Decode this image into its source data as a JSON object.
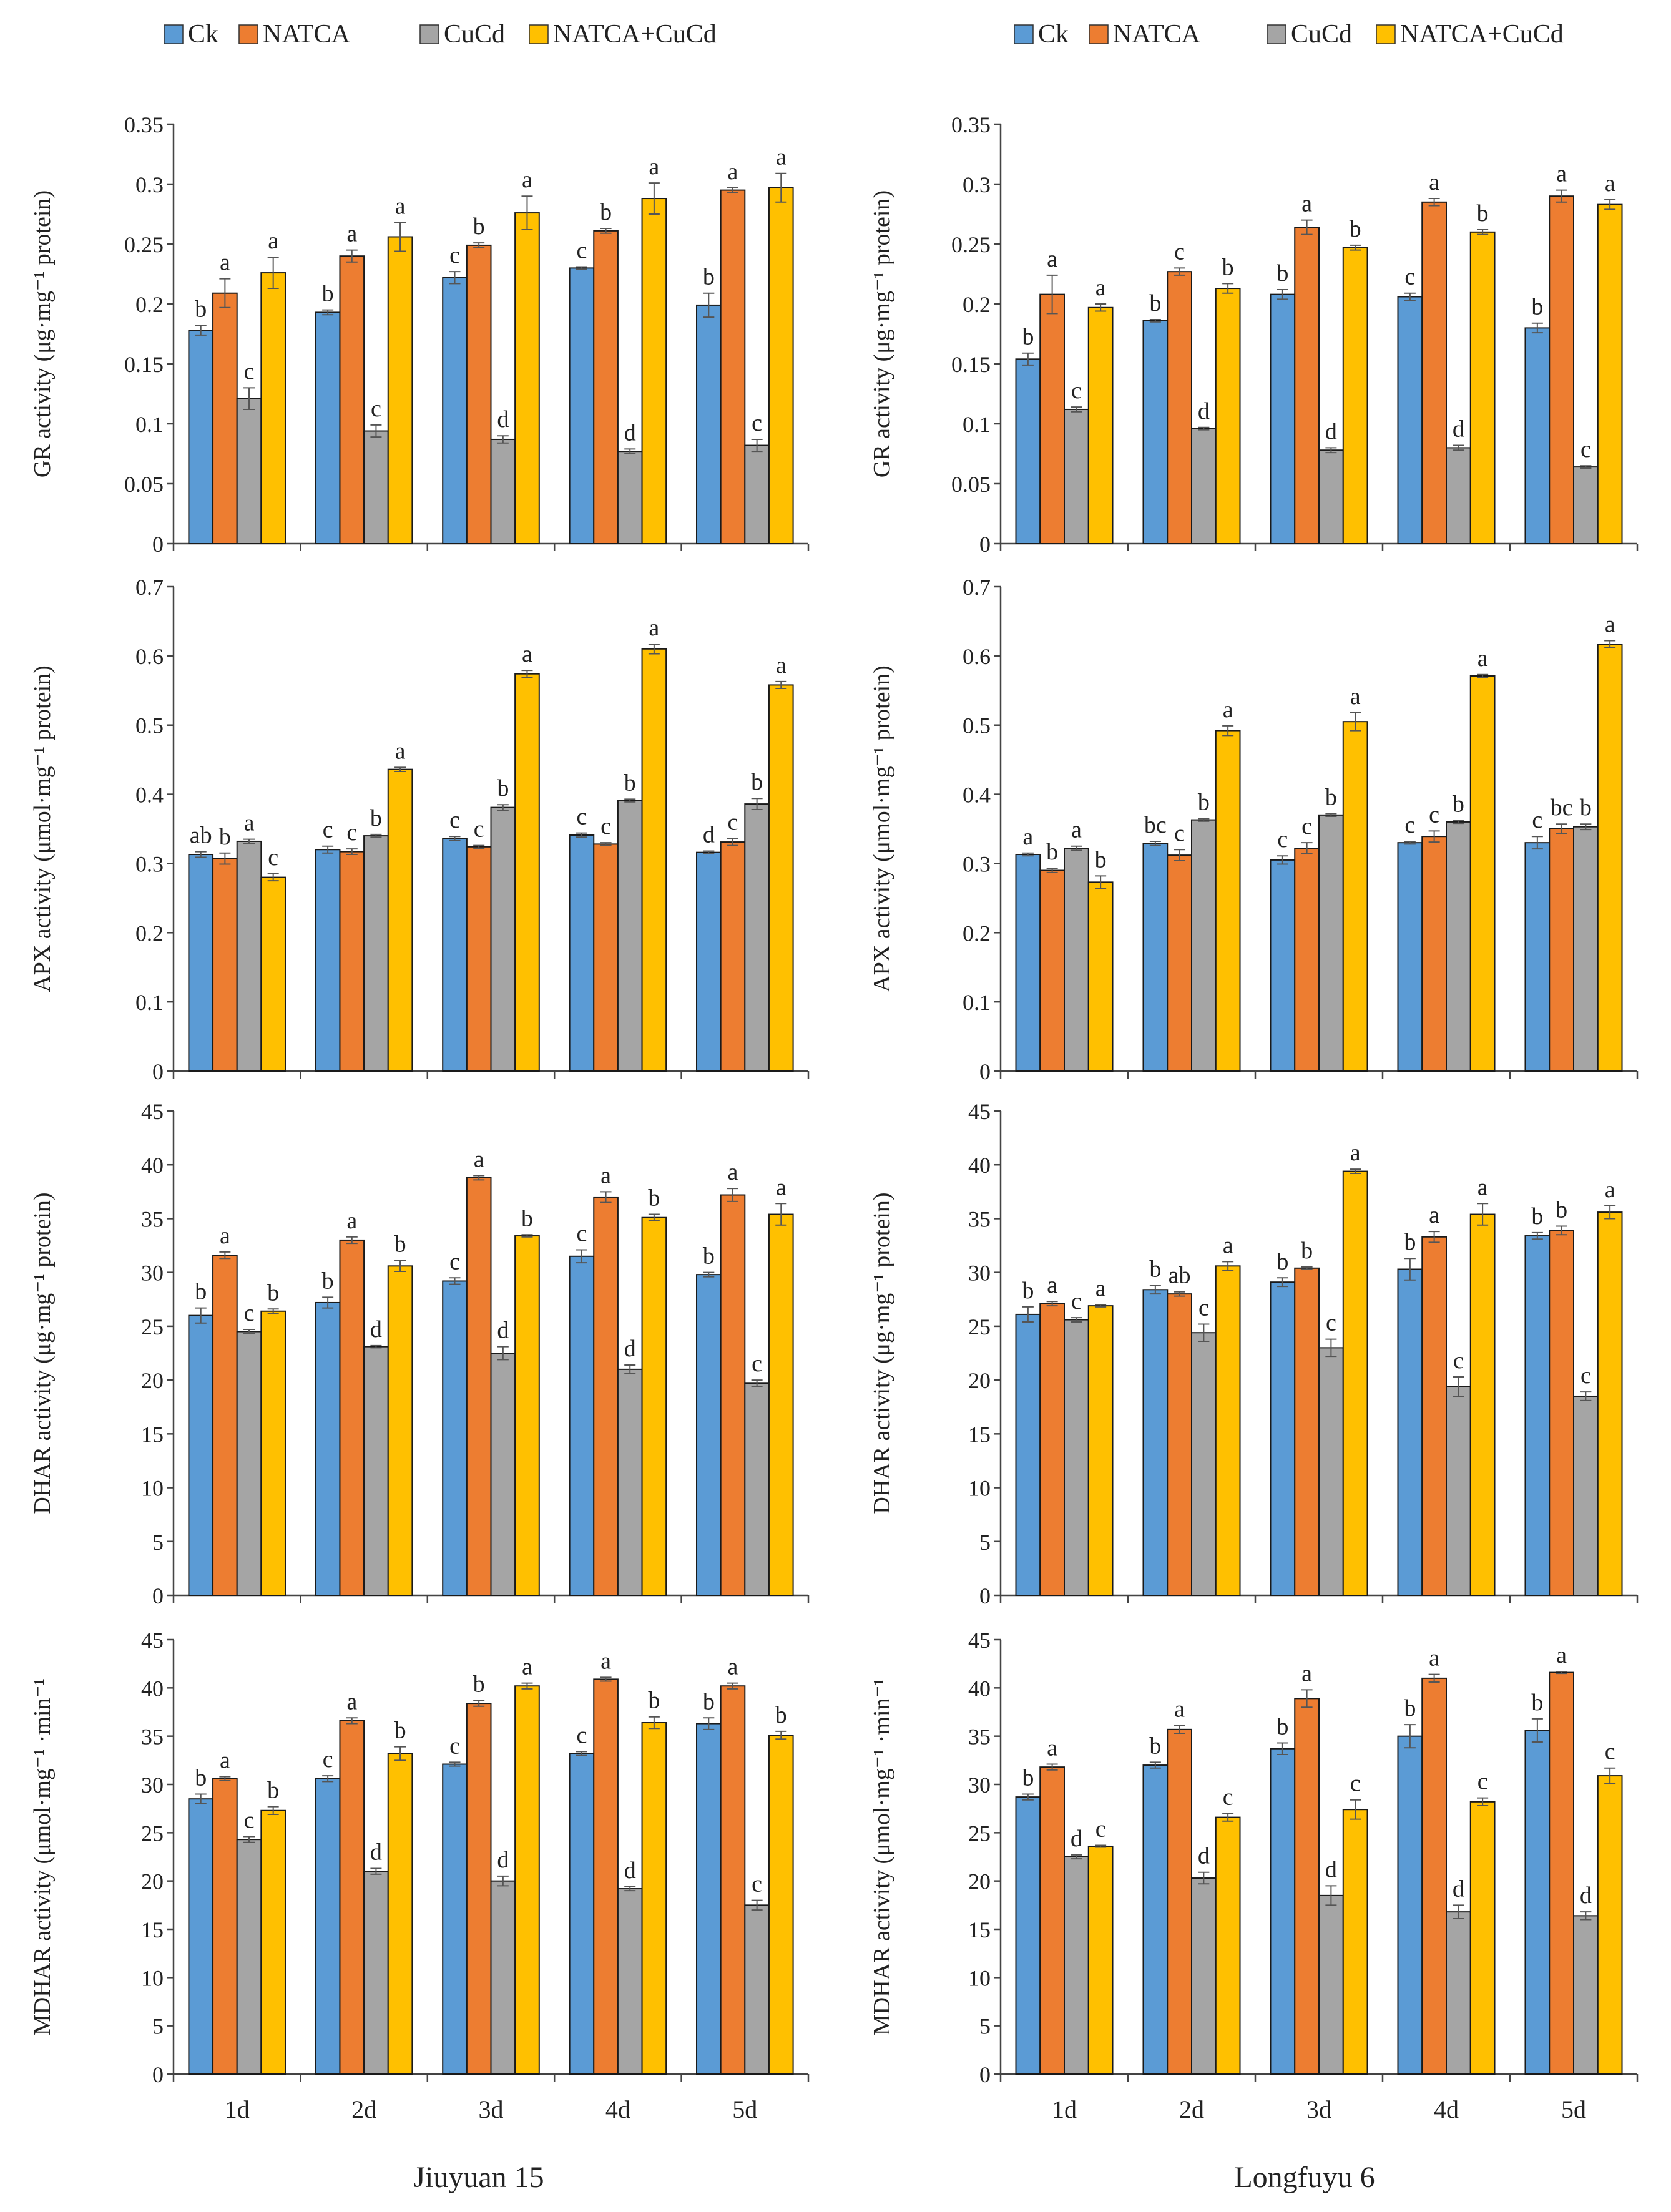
{
  "legend": {
    "left": [
      "Ck",
      "NATCA",
      "CuCd",
      "NATCA+CuCd"
    ],
    "right": [
      "Ck",
      "NATCA",
      "CuCd",
      "NATCA+CuCd"
    ]
  },
  "colors": {
    "Ck": "#5b9bd5",
    "NATCA": "#ed7d31",
    "CuCd": "#a5a5a5",
    "NATCA+CuCd": "#ffc000"
  },
  "columns": [
    {
      "title": "Jiuyuan 15"
    },
    {
      "title": "Longfuyu 6"
    }
  ],
  "chart_data": [
    {
      "type": "bar",
      "panel": "Jiuyuan 15 - GR",
      "categories": [
        "1d",
        "2d",
        "3d",
        "4d",
        "5d"
      ],
      "ylabel": "GR activity (μg·mg⁻¹ protein)",
      "ylim": [
        0,
        0.35
      ],
      "yticks": [
        "0",
        "0.05",
        "0.1",
        "0.15",
        "0.2",
        "0.25",
        "0.3",
        "0.35"
      ],
      "series": [
        {
          "name": "Ck",
          "values": [
            0.178,
            0.193,
            0.222,
            0.23,
            0.199
          ],
          "errors": [
            0.004,
            0.002,
            0.005,
            0.001,
            0.01
          ],
          "labels": [
            "b",
            "b",
            "c",
            "c",
            "b"
          ]
        },
        {
          "name": "NATCA",
          "values": [
            0.209,
            0.24,
            0.249,
            0.261,
            0.295
          ],
          "errors": [
            0.012,
            0.005,
            0.002,
            0.002,
            0.002
          ],
          "labels": [
            "a",
            "a",
            "b",
            "b",
            "a"
          ]
        },
        {
          "name": "CuCd",
          "values": [
            0.121,
            0.094,
            0.087,
            0.077,
            0.082
          ],
          "errors": [
            0.009,
            0.005,
            0.003,
            0.002,
            0.005
          ],
          "labels": [
            "c",
            "c",
            "d",
            "d",
            "c"
          ]
        },
        {
          "name": "NATCA+CuCd",
          "values": [
            0.226,
            0.256,
            0.276,
            0.288,
            0.297
          ],
          "errors": [
            0.013,
            0.012,
            0.014,
            0.013,
            0.012
          ],
          "labels": [
            "a",
            "a",
            "a",
            "a",
            "a"
          ]
        }
      ]
    },
    {
      "type": "bar",
      "panel": "Longfuyu 6 - GR",
      "categories": [
        "1d",
        "2d",
        "3d",
        "4d",
        "5d"
      ],
      "ylabel": "GR activity (μg·mg⁻¹ protein)",
      "ylim": [
        0,
        0.35
      ],
      "yticks": [
        "0",
        "0.05",
        "0.1",
        "0.15",
        "0.2",
        "0.25",
        "0.3",
        "0.35"
      ],
      "series": [
        {
          "name": "Ck",
          "values": [
            0.154,
            0.186,
            0.208,
            0.206,
            0.18
          ],
          "errors": [
            0.005,
            0.001,
            0.004,
            0.003,
            0.004
          ],
          "labels": [
            "b",
            "b",
            "b",
            "c",
            "b"
          ]
        },
        {
          "name": "NATCA",
          "values": [
            0.208,
            0.227,
            0.264,
            0.285,
            0.29
          ],
          "errors": [
            0.016,
            0.003,
            0.006,
            0.003,
            0.005
          ],
          "labels": [
            "a",
            "c",
            "a",
            "a",
            "a"
          ]
        },
        {
          "name": "CuCd",
          "values": [
            0.112,
            0.096,
            0.078,
            0.08,
            0.064
          ],
          "errors": [
            0.002,
            0.001,
            0.002,
            0.002,
            0.001
          ],
          "labels": [
            "c",
            "d",
            "d",
            "d",
            "c"
          ]
        },
        {
          "name": "NATCA+CuCd",
          "values": [
            0.197,
            0.213,
            0.247,
            0.26,
            0.283
          ],
          "errors": [
            0.003,
            0.004,
            0.002,
            0.002,
            0.004
          ],
          "labels": [
            "a",
            "b",
            "b",
            "b",
            "a"
          ]
        }
      ]
    },
    {
      "type": "bar",
      "panel": "Jiuyuan 15 - APX",
      "categories": [
        "1d",
        "2d",
        "3d",
        "4d",
        "5d"
      ],
      "ylabel": "APX activity (μmol·mg⁻¹ protein)",
      "ylim": [
        0,
        0.7
      ],
      "yticks": [
        "0",
        "0.1",
        "0.2",
        "0.3",
        "0.4",
        "0.5",
        "0.6",
        "0.7"
      ],
      "series": [
        {
          "name": "Ck",
          "values": [
            0.313,
            0.32,
            0.336,
            0.341,
            0.316
          ],
          "errors": [
            0.004,
            0.005,
            0.003,
            0.003,
            0.002
          ],
          "labels": [
            "ab",
            "c",
            "c",
            "c",
            "d"
          ]
        },
        {
          "name": "NATCA",
          "values": [
            0.307,
            0.317,
            0.324,
            0.328,
            0.331
          ],
          "errors": [
            0.008,
            0.004,
            0.002,
            0.002,
            0.005
          ],
          "labels": [
            "b",
            "c",
            "c",
            "c",
            "c"
          ]
        },
        {
          "name": "CuCd",
          "values": [
            0.332,
            0.34,
            0.381,
            0.391,
            0.386
          ],
          "errors": [
            0.003,
            0.002,
            0.004,
            0.002,
            0.008
          ],
          "labels": [
            "a",
            "b",
            "b",
            "b",
            "b"
          ]
        },
        {
          "name": "NATCA+CuCd",
          "values": [
            0.28,
            0.436,
            0.574,
            0.61,
            0.558
          ],
          "errors": [
            0.005,
            0.003,
            0.005,
            0.007,
            0.005
          ],
          "labels": [
            "c",
            "a",
            "a",
            "a",
            "a"
          ]
        }
      ]
    },
    {
      "type": "bar",
      "panel": "Longfuyu 6 - APX",
      "categories": [
        "1d",
        "2d",
        "3d",
        "4d",
        "5d"
      ],
      "ylabel": "APX activity (μmol·mg⁻¹ protein)",
      "ylim": [
        0,
        0.7
      ],
      "yticks": [
        "0",
        "0.1",
        "0.2",
        "0.3",
        "0.4",
        "0.5",
        "0.6",
        "0.7"
      ],
      "series": [
        {
          "name": "Ck",
          "values": [
            0.313,
            0.329,
            0.305,
            0.33,
            0.33
          ],
          "errors": [
            0.002,
            0.003,
            0.006,
            0.002,
            0.009
          ],
          "labels": [
            "a",
            "bc",
            "c",
            "c",
            "c"
          ]
        },
        {
          "name": "NATCA",
          "values": [
            0.29,
            0.312,
            0.322,
            0.339,
            0.35
          ],
          "errors": [
            0.003,
            0.008,
            0.008,
            0.008,
            0.007
          ],
          "labels": [
            "b",
            "c",
            "c",
            "c",
            "bc"
          ]
        },
        {
          "name": "CuCd",
          "values": [
            0.322,
            0.363,
            0.37,
            0.36,
            0.353
          ],
          "errors": [
            0.003,
            0.002,
            0.002,
            0.002,
            0.004
          ],
          "labels": [
            "a",
            "b",
            "b",
            "b",
            "b"
          ]
        },
        {
          "name": "NATCA+CuCd",
          "values": [
            0.273,
            0.492,
            0.505,
            0.571,
            0.617
          ],
          "errors": [
            0.009,
            0.007,
            0.013,
            0.002,
            0.005
          ],
          "labels": [
            "b",
            "a",
            "a",
            "a",
            "a"
          ]
        }
      ]
    },
    {
      "type": "bar",
      "panel": "Jiuyuan 15 - DHAR",
      "categories": [
        "1d",
        "2d",
        "3d",
        "4d",
        "5d"
      ],
      "ylabel": "DHAR activity (μg·mg⁻¹ protein)",
      "ylim": [
        0,
        45
      ],
      "yticks": [
        "0",
        "5",
        "10",
        "15",
        "20",
        "25",
        "30",
        "35",
        "40",
        "45"
      ],
      "series": [
        {
          "name": "Ck",
          "values": [
            26.0,
            27.2,
            29.2,
            31.5,
            29.8
          ],
          "errors": [
            0.7,
            0.5,
            0.3,
            0.6,
            0.2
          ],
          "labels": [
            "b",
            "b",
            "c",
            "c",
            "b"
          ]
        },
        {
          "name": "NATCA",
          "values": [
            31.6,
            33.0,
            38.8,
            37.0,
            37.2
          ],
          "errors": [
            0.3,
            0.3,
            0.2,
            0.5,
            0.6
          ],
          "labels": [
            "a",
            "a",
            "a",
            "a",
            "a"
          ]
        },
        {
          "name": "CuCd",
          "values": [
            24.5,
            23.1,
            22.5,
            21.0,
            19.7
          ],
          "errors": [
            0.2,
            0.1,
            0.6,
            0.4,
            0.3
          ],
          "labels": [
            "c",
            "d",
            "d",
            "d",
            "c"
          ]
        },
        {
          "name": "NATCA+CuCd",
          "values": [
            26.4,
            30.6,
            33.4,
            35.1,
            35.4
          ],
          "errors": [
            0.2,
            0.5,
            0.1,
            0.3,
            1.0
          ],
          "labels": [
            "b",
            "b",
            "b",
            "b",
            "a"
          ]
        }
      ]
    },
    {
      "type": "bar",
      "panel": "Longfuyu 6 - DHAR",
      "categories": [
        "1d",
        "2d",
        "3d",
        "4d",
        "5d"
      ],
      "ylabel": "DHAR activity (μg·mg⁻¹ protein)",
      "ylim": [
        0,
        45
      ],
      "yticks": [
        "0",
        "5",
        "10",
        "15",
        "20",
        "25",
        "30",
        "35",
        "40",
        "45"
      ],
      "series": [
        {
          "name": "Ck",
          "values": [
            26.1,
            28.4,
            29.1,
            30.3,
            33.4
          ],
          "errors": [
            0.7,
            0.4,
            0.4,
            1.0,
            0.3
          ],
          "labels": [
            "b",
            "b",
            "b",
            "b",
            "b"
          ]
        },
        {
          "name": "NATCA",
          "values": [
            27.1,
            28.0,
            30.4,
            33.3,
            33.9
          ],
          "errors": [
            0.2,
            0.2,
            0.1,
            0.5,
            0.4
          ],
          "labels": [
            "a",
            "ab",
            "b",
            "a",
            "b"
          ]
        },
        {
          "name": "CuCd",
          "values": [
            25.6,
            24.4,
            23.0,
            19.4,
            18.5
          ],
          "errors": [
            0.2,
            0.8,
            0.8,
            0.9,
            0.4
          ],
          "labels": [
            "c",
            "c",
            "c",
            "c",
            "c"
          ]
        },
        {
          "name": "NATCA+CuCd",
          "values": [
            26.9,
            30.6,
            39.4,
            35.4,
            35.6
          ],
          "errors": [
            0.1,
            0.4,
            0.2,
            1.0,
            0.6
          ],
          "labels": [
            "a",
            "a",
            "a",
            "a",
            "a"
          ]
        }
      ]
    },
    {
      "type": "bar",
      "panel": "Jiuyuan 15 - MDHAR",
      "categories": [
        "1d",
        "2d",
        "3d",
        "4d",
        "5d"
      ],
      "ylabel": "MDHAR activity (μmol·mg⁻¹ ·min⁻¹",
      "ylim": [
        0,
        45
      ],
      "yticks": [
        "0",
        "5",
        "10",
        "15",
        "20",
        "25",
        "30",
        "35",
        "40",
        "45"
      ],
      "series": [
        {
          "name": "Ck",
          "values": [
            28.5,
            30.6,
            32.1,
            33.2,
            36.3
          ],
          "errors": [
            0.5,
            0.3,
            0.2,
            0.2,
            0.6
          ],
          "labels": [
            "b",
            "c",
            "c",
            "c",
            "b"
          ]
        },
        {
          "name": "NATCA",
          "values": [
            30.6,
            36.6,
            38.4,
            40.9,
            40.2
          ],
          "errors": [
            0.2,
            0.3,
            0.3,
            0.2,
            0.3
          ],
          "labels": [
            "a",
            "a",
            "b",
            "a",
            "a"
          ]
        },
        {
          "name": "CuCd",
          "values": [
            24.3,
            21.0,
            20.0,
            19.2,
            17.5
          ],
          "errors": [
            0.3,
            0.3,
            0.5,
            0.2,
            0.5
          ],
          "labels": [
            "c",
            "d",
            "d",
            "d",
            "c"
          ]
        },
        {
          "name": "NATCA+CuCd",
          "values": [
            27.3,
            33.2,
            40.2,
            36.4,
            35.1
          ],
          "errors": [
            0.4,
            0.7,
            0.3,
            0.6,
            0.4
          ],
          "labels": [
            "b",
            "b",
            "a",
            "b",
            "b"
          ]
        }
      ]
    },
    {
      "type": "bar",
      "panel": "Longfuyu 6 - MDHAR",
      "categories": [
        "1d",
        "2d",
        "3d",
        "4d",
        "5d"
      ],
      "ylabel": "MDHAR activity (μmol·mg⁻¹ ·min⁻¹",
      "ylim": [
        0,
        45
      ],
      "yticks": [
        "0",
        "5",
        "10",
        "15",
        "20",
        "25",
        "30",
        "35",
        "40",
        "45"
      ],
      "series": [
        {
          "name": "Ck",
          "values": [
            28.7,
            32.0,
            33.7,
            35.0,
            35.6
          ],
          "errors": [
            0.3,
            0.3,
            0.6,
            1.2,
            1.2
          ],
          "labels": [
            "b",
            "b",
            "b",
            "b",
            "b"
          ]
        },
        {
          "name": "NATCA",
          "values": [
            31.8,
            35.7,
            38.9,
            41.0,
            41.6
          ],
          "errors": [
            0.3,
            0.4,
            0.9,
            0.4,
            0.1
          ],
          "labels": [
            "a",
            "a",
            "a",
            "a",
            "a"
          ]
        },
        {
          "name": "CuCd",
          "values": [
            22.5,
            20.3,
            18.5,
            16.8,
            16.4
          ],
          "errors": [
            0.2,
            0.6,
            1.0,
            0.7,
            0.4
          ],
          "labels": [
            "d",
            "d",
            "d",
            "d",
            "d"
          ]
        },
        {
          "name": "NATCA+CuCd",
          "values": [
            23.6,
            26.6,
            27.4,
            28.2,
            30.9
          ],
          "errors": [
            0.1,
            0.4,
            1.0,
            0.4,
            0.8
          ],
          "labels": [
            "c",
            "c",
            "c",
            "c",
            "c"
          ]
        }
      ]
    }
  ]
}
